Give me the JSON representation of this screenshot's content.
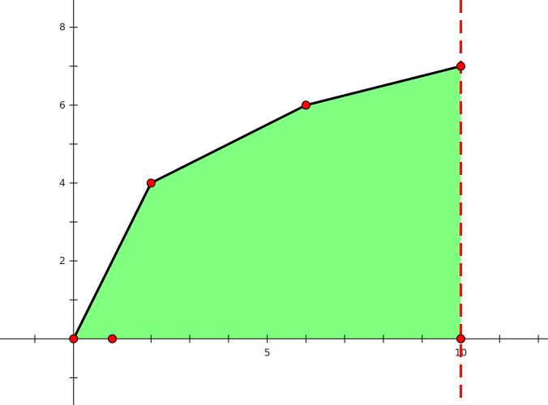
{
  "chart_data": {
    "type": "area",
    "colors": {
      "fill": "#80ff80",
      "line": "#000000",
      "point": "#ff0000",
      "boundary": "#ee1111",
      "axis": "#000000"
    },
    "xlim": [
      -1.9,
      12.25
    ],
    "ylim": [
      -1.7,
      8.7
    ],
    "x_tick_labels": [
      {
        "value": 5,
        "text": "5"
      },
      {
        "value": 10,
        "text": "10"
      }
    ],
    "y_tick_labels": [
      {
        "value": 2,
        "text": "2"
      },
      {
        "value": 4,
        "text": "4"
      },
      {
        "value": 6,
        "text": "6"
      },
      {
        "value": 8,
        "text": "8"
      }
    ],
    "x_minor_ticks": [
      -1,
      1,
      2,
      3,
      4,
      6,
      7,
      8,
      9,
      11,
      12
    ],
    "y_minor_ticks": [
      -1,
      1,
      3,
      5,
      7
    ],
    "polyline": [
      {
        "x": 0,
        "y": 0
      },
      {
        "x": 2,
        "y": 4
      },
      {
        "x": 6,
        "y": 6
      },
      {
        "x": 10,
        "y": 7
      }
    ],
    "shaded_region": {
      "from_x": 0,
      "to_x": 10,
      "under": "polyline",
      "down_to_y": 0
    },
    "vertical_line": {
      "x": 10,
      "style": "dashed"
    },
    "points": [
      {
        "x": 0,
        "y": 0
      },
      {
        "x": 1,
        "y": 0
      },
      {
        "x": 2,
        "y": 4
      },
      {
        "x": 6,
        "y": 6
      },
      {
        "x": 10,
        "y": 7
      },
      {
        "x": 10,
        "y": 0
      }
    ],
    "grid": false,
    "legend": "none"
  }
}
